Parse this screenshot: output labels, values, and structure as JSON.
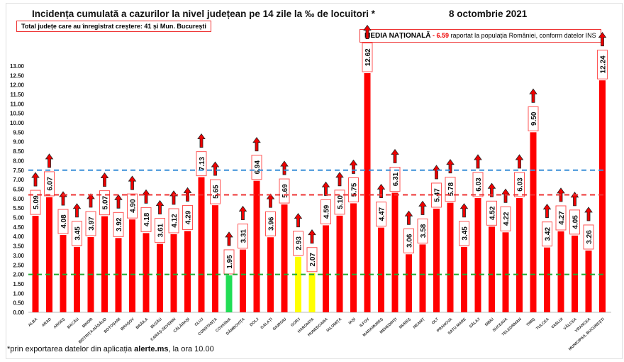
{
  "chart_data": {
    "type": "bar",
    "title": "Incidența cumulată a cazurilor la nivel județean pe 14 zile la ‰ de locuitori *",
    "date": "8 octombrie 2021",
    "note_total": "Total județe care au înregistrat creștere:  41 și Mun. București",
    "national": {
      "label": "MEDIA NAȚIONALĂ",
      "dash": " - ",
      "value": "6.59",
      "suffix": " raportat la populația României, conform datelor INS"
    },
    "footnote_pre": "*prin exportarea datelor din aplicația ",
    "footnote_bold": "alerte.ms",
    "footnote_post": ", la ora 10.00",
    "categories": [
      "ALBA",
      "ARAD",
      "ARGEȘ",
      "BACĂU",
      "BIHOR",
      "BISTRIȚA-NĂSĂUD",
      "BOTOȘANI",
      "BRAȘOV",
      "BRĂILA",
      "BUZĂU",
      "CARAȘ-SEVERIN",
      "CĂLĂRAȘI",
      "CLUJ",
      "CONSTANȚA",
      "COVASNA",
      "DÂMBOVIȚA",
      "DOLJ",
      "GALAȚI",
      "GIURGIU",
      "GORJ",
      "HARGHITA",
      "HUNEDOARA",
      "IALOMIȚA",
      "IAȘI",
      "ILFOV",
      "MARAMUREȘ",
      "MEHEDINȚI",
      "MUREȘ",
      "NEAMȚ",
      "OLT",
      "PRAHOVA",
      "SATU MARE",
      "SĂLAJ",
      "SIBIU",
      "SUCEAVA",
      "TELEORMAN",
      "TIMIȘ",
      "TULCEA",
      "VASLUI",
      "VÂLCEA",
      "VRANCEA",
      "MUNICIPIUL BUCUREȘTI"
    ],
    "values": [
      5.09,
      6.07,
      4.08,
      3.45,
      3.97,
      5.07,
      3.92,
      4.9,
      4.18,
      3.61,
      4.12,
      4.29,
      7.13,
      5.65,
      1.95,
      3.31,
      6.94,
      3.96,
      5.69,
      2.93,
      2.07,
      4.59,
      5.1,
      5.75,
      12.62,
      4.47,
      6.31,
      3.06,
      3.58,
      5.47,
      5.78,
      3.45,
      6.03,
      4.52,
      4.22,
      6.03,
      9.5,
      3.42,
      4.27,
      4.05,
      3.26,
      12.24
    ],
    "labels": [
      "5.09",
      "6.07",
      "4.08",
      "3.45",
      "3.97",
      "5.07",
      "3.92",
      "4.90",
      "4.18",
      "3.61",
      "4.12",
      "4.29",
      "7.13",
      "5.65",
      "1.95",
      "3.31",
      "6.94",
      "3.96",
      "5.69",
      "2.93",
      "2.07",
      "4.59",
      "5.10",
      "5.75",
      "12.62",
      "4.47",
      "6.31",
      "3.06",
      "3.58",
      "5.47",
      "5.78",
      "3.45",
      "6.03",
      "4.52",
      "4.22",
      "6.03",
      "9.50",
      "3.42",
      "4.27",
      "4.05",
      "3.26",
      "12.24"
    ],
    "trend": "up-all",
    "colors": {
      "default": "#ff0000",
      "green": "#22dd55",
      "yellow": "#ffff00"
    },
    "bar_colors": {
      "COVASNA": "green",
      "GORJ": "yellow",
      "HARGHITA": "yellow"
    },
    "reference_lines": [
      {
        "value": 7.5,
        "color": "#3a8fd8"
      },
      {
        "value": 6.2,
        "color": "#ee3333"
      },
      {
        "value": 2.0,
        "color": "#22aa33"
      }
    ],
    "ylim": [
      0,
      13
    ],
    "ytick_step": 0.5,
    "xlabel": "",
    "ylabel": ""
  }
}
